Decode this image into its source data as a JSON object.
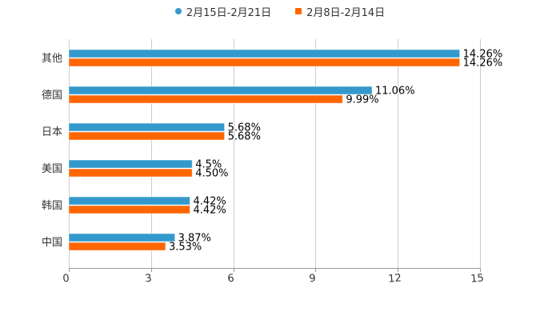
{
  "legend": {
    "items": [
      {
        "label": "2月15日-2月21日",
        "color": "#3399cc",
        "marker": "circle"
      },
      {
        "label": "2月8日-2月14日",
        "color": "#ff6600",
        "marker": "square"
      }
    ]
  },
  "colors": {
    "series1": "#3399cc",
    "series2": "#ff6600",
    "grid": "#cccccc",
    "axis": "#999999"
  },
  "chart_data": {
    "type": "bar",
    "orientation": "horizontal",
    "title": "",
    "xlabel": "",
    "ylabel": "",
    "categories": [
      "其他",
      "德国",
      "日本",
      "美国",
      "韩国",
      "中国"
    ],
    "series": [
      {
        "name": "2月15日-2月21日",
        "values": [
          14.26,
          11.06,
          5.68,
          4.5,
          4.42,
          3.87
        ],
        "labels": [
          "14.26%",
          "11.06%",
          "5.68%",
          "4.5%",
          "4.42%",
          "3.87%"
        ]
      },
      {
        "name": "2月8日-2月14日",
        "values": [
          14.26,
          9.99,
          5.68,
          4.5,
          4.42,
          3.53
        ],
        "labels": [
          "14.26%",
          "9.99%",
          "5.68%",
          "4.50%",
          "4.42%",
          "3.53%"
        ]
      }
    ],
    "xlim": [
      0,
      15
    ],
    "xticks": [
      "0",
      "3",
      "6",
      "9",
      "12",
      "15"
    ],
    "grid": true,
    "legend_position": "top"
  }
}
